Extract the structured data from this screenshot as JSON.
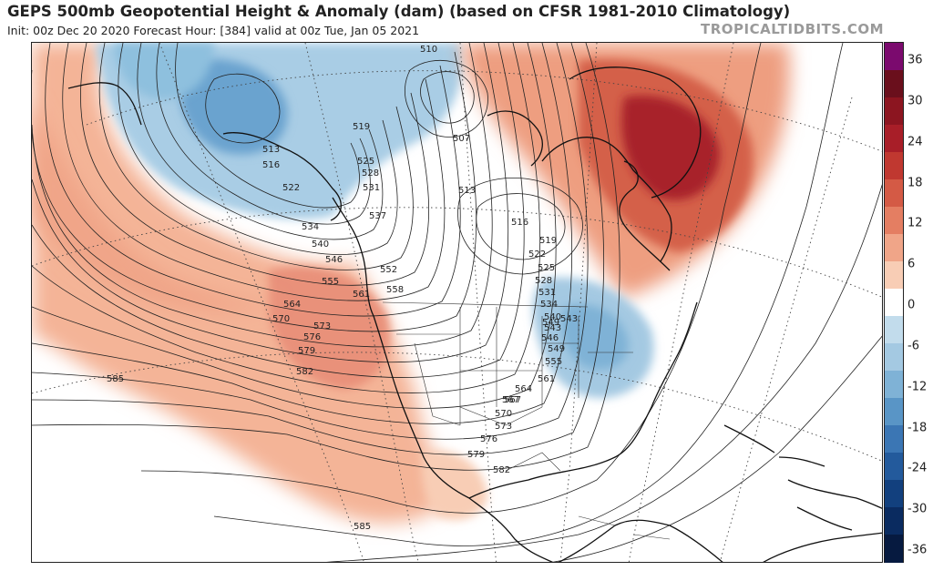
{
  "header": {
    "title": "GEPS 500mb Geopotential Height & Anomaly (dam) (based on CFSR 1981-2010 Climatology)",
    "subtitle": "Init: 00z Dec 20 2020   Forecast Hour: [384]   valid at 00z Tue, Jan 05 2021",
    "watermark": "TROPICALTIDBITS.COM"
  },
  "colorbar": {
    "ticks": [
      "36",
      "30",
      "24",
      "18",
      "12",
      "6",
      "0",
      "-6",
      "-12",
      "-18",
      "-24",
      "-30",
      "-36"
    ],
    "colors": [
      "#7b0a6e",
      "#6a0f1c",
      "#8c1520",
      "#a81e28",
      "#c03830",
      "#d45a45",
      "#e47e62",
      "#f0a588",
      "#f8cdb5",
      "#ffffff",
      "#c2dcec",
      "#a4c9e2",
      "#7fb2d6",
      "#5995c6",
      "#3b76b4",
      "#235a9c",
      "#12407e",
      "#0a2b60",
      "#061a40"
    ],
    "units": "dam"
  },
  "map": {
    "region": "North America / North Pacific",
    "contour_labels": [
      "510",
      "507",
      "513",
      "516",
      "519",
      "522",
      "525",
      "528",
      "531",
      "534",
      "537",
      "540",
      "543",
      "546",
      "549",
      "552",
      "555",
      "558",
      "561",
      "564",
      "567",
      "570",
      "573",
      "576",
      "579",
      "582",
      "585",
      "513",
      "516",
      "519",
      "522",
      "525",
      "528",
      "531",
      "534",
      "540",
      "543",
      "546",
      "549",
      "555",
      "561",
      "564",
      "567",
      "570",
      "573",
      "576",
      "579",
      "582",
      "585"
    ],
    "anomaly_colors": {
      "strong_positive": "#a81e28",
      "positive": "#e47e62",
      "weak_positive": "#f8cdb5",
      "weak_negative": "#c2dcec",
      "negative": "#7fb2d6",
      "strong_negative": "#5995c6"
    }
  }
}
